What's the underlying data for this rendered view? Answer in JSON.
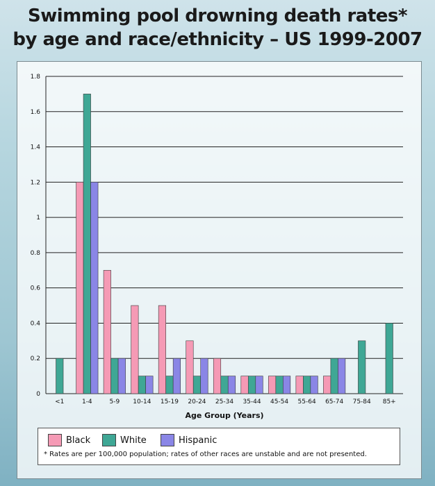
{
  "title_line1": "Swimming pool drowning death rates*",
  "title_line2": "by age and race/ethnicity – US 1999-2007",
  "footnote": "* Rates are per 100,000 population; rates of other races are unstable and are not presented.",
  "chart_data": {
    "type": "bar",
    "xlabel": "Age Group (Years)",
    "ylabel": "",
    "ylim": [
      0,
      1.8
    ],
    "yticks": [
      "0",
      "0.2",
      "0.4",
      "0.6",
      "0.8",
      "1",
      "1.2",
      "1.4",
      "1.6",
      "1.8"
    ],
    "categories": [
      "<1",
      "1-4",
      "5-9",
      "10-14",
      "15-19",
      "20-24",
      "25-34",
      "35-44",
      "45-54",
      "55-64",
      "65-74",
      "75-84",
      "85+"
    ],
    "grid": true,
    "legend": "bottom",
    "series": [
      {
        "name": "Black",
        "color": "#f59ab5",
        "values": [
          0,
          1.2,
          0.7,
          0.5,
          0.5,
          0.3,
          0.2,
          0.1,
          0.1,
          0.1,
          0.1,
          0,
          0
        ]
      },
      {
        "name": "White",
        "color": "#3fa795",
        "values": [
          0.2,
          1.7,
          0.2,
          0.1,
          0.1,
          0.1,
          0.1,
          0.1,
          0.1,
          0.1,
          0.2,
          0.3,
          0.4
        ]
      },
      {
        "name": "Hispanic",
        "color": "#8a86e6",
        "values": [
          0,
          1.2,
          0.2,
          0.1,
          0.2,
          0.2,
          0.1,
          0.1,
          0.1,
          0.1,
          0.2,
          0,
          0
        ]
      }
    ]
  }
}
